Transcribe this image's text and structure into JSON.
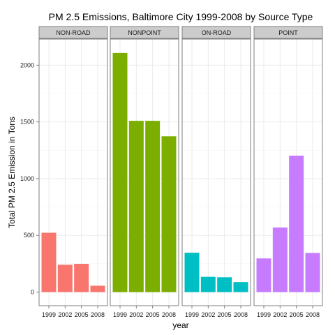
{
  "chart_data": {
    "type": "bar",
    "title": "PM 2.5 Emissions, Baltimore City 1999-2008 by Source Type",
    "xlabel": "year",
    "ylabel": "Total PM 2.5 Emission in Tons",
    "categories": [
      "1999",
      "2002",
      "2005",
      "2008"
    ],
    "ylim": [
      -120,
      2230
    ],
    "y_ticks": [
      0,
      500,
      1000,
      1500,
      2000
    ],
    "y_tick_labels": [
      "0",
      "500",
      "1000",
      "1500",
      "2000"
    ],
    "grid": true,
    "legend": "none",
    "series": [
      {
        "name": "NON-ROAD",
        "color": "#F8766D",
        "values": [
          522.9,
          240.8,
          248.9,
          55.8
        ]
      },
      {
        "name": "NONPOINT",
        "color": "#7CAE00",
        "values": [
          2107.6,
          1509.5,
          1509.5,
          1373.2
        ]
      },
      {
        "name": "ON-ROAD",
        "color": "#00BFC4",
        "values": [
          346.8,
          134.3,
          130.4,
          88.3
        ]
      },
      {
        "name": "POINT",
        "color": "#C77CFF",
        "values": [
          296.8,
          569.3,
          1202.5,
          344.98
        ]
      }
    ]
  }
}
